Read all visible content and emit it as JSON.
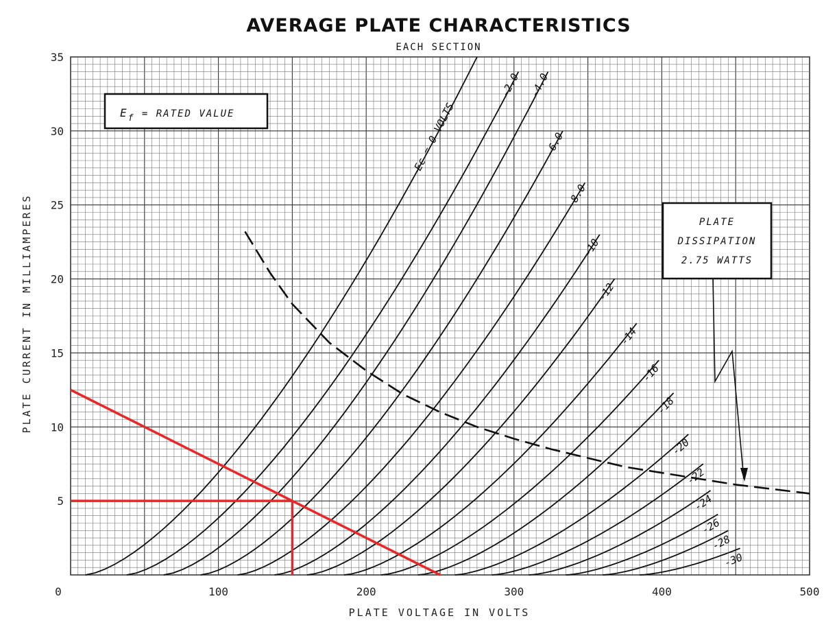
{
  "chart_data": {
    "type": "line",
    "title": "AVERAGE PLATE CHARACTERISTICS",
    "subtitle": "EACH SECTION",
    "xlabel": "PLATE VOLTAGE IN VOLTS",
    "ylabel": "PLATE CURRENT IN MILLIAMPERES",
    "xlim": [
      0,
      500
    ],
    "ylim": [
      0,
      35
    ],
    "x_ticks": [
      "0",
      "100",
      "200",
      "300",
      "400",
      "500"
    ],
    "y_ticks": [
      "5",
      "10",
      "15",
      "20",
      "25",
      "30",
      "35"
    ],
    "grid": true,
    "note_box": "E_f = RATED VALUE",
    "note_box_parts": {
      "symbol": "E",
      "subscript": "f",
      "text": " = RATED VALUE"
    },
    "dissipation_box": [
      "PLATE",
      "DISSIPATION",
      "2.75 WATTS"
    ],
    "series": [
      {
        "label": "Ec = 0 VOLTS",
        "v0": 10,
        "v1": 275,
        "i1": 35
      },
      {
        "label": "-2.0",
        "v0": 38,
        "v1": 303,
        "i1": 34
      },
      {
        "label": "-4.0",
        "v0": 63,
        "v1": 323,
        "i1": 34
      },
      {
        "label": "-6.0",
        "v0": 88,
        "v1": 333,
        "i1": 30
      },
      {
        "label": "-8.0",
        "v0": 113,
        "v1": 348,
        "i1": 26.5
      },
      {
        "label": "-10",
        "v0": 138,
        "v1": 358,
        "i1": 23
      },
      {
        "label": "-12",
        "v0": 160,
        "v1": 368,
        "i1": 20
      },
      {
        "label": "-14",
        "v0": 185,
        "v1": 383,
        "i1": 17
      },
      {
        "label": "-16",
        "v0": 210,
        "v1": 398,
        "i1": 14.5
      },
      {
        "label": "-18",
        "v0": 235,
        "v1": 408,
        "i1": 12.3
      },
      {
        "label": "-20",
        "v0": 260,
        "v1": 418,
        "i1": 9.5
      },
      {
        "label": "-22",
        "v0": 285,
        "v1": 428,
        "i1": 7.5
      },
      {
        "label": "-24",
        "v0": 310,
        "v1": 433,
        "i1": 5.7
      },
      {
        "label": "-26",
        "v0": 335,
        "v1": 438,
        "i1": 4.1
      },
      {
        "label": "-28",
        "v0": 360,
        "v1": 445,
        "i1": 3.0
      },
      {
        "label": "-30",
        "v0": 385,
        "v1": 453,
        "i1": 1.8
      }
    ],
    "dissipation_curve": {
      "watts": 2.75,
      "x": [
        118,
        135,
        150,
        175,
        200,
        225,
        250,
        275,
        300,
        325,
        350,
        375,
        400,
        425,
        450,
        475,
        500
      ],
      "y": [
        23.2,
        20.4,
        18.3,
        15.7,
        13.8,
        12.2,
        11.0,
        10.0,
        9.2,
        8.5,
        7.9,
        7.3,
        6.9,
        6.5,
        6.1,
        5.8,
        5.5
      ]
    },
    "load_line": {
      "x": [
        0,
        250
      ],
      "y": [
        12.5,
        0
      ]
    },
    "operating_point": {
      "x": 150,
      "y": 5
    },
    "colors": {
      "ink": "#111111",
      "grid": "#777777",
      "highlight": "#e8272b"
    }
  }
}
